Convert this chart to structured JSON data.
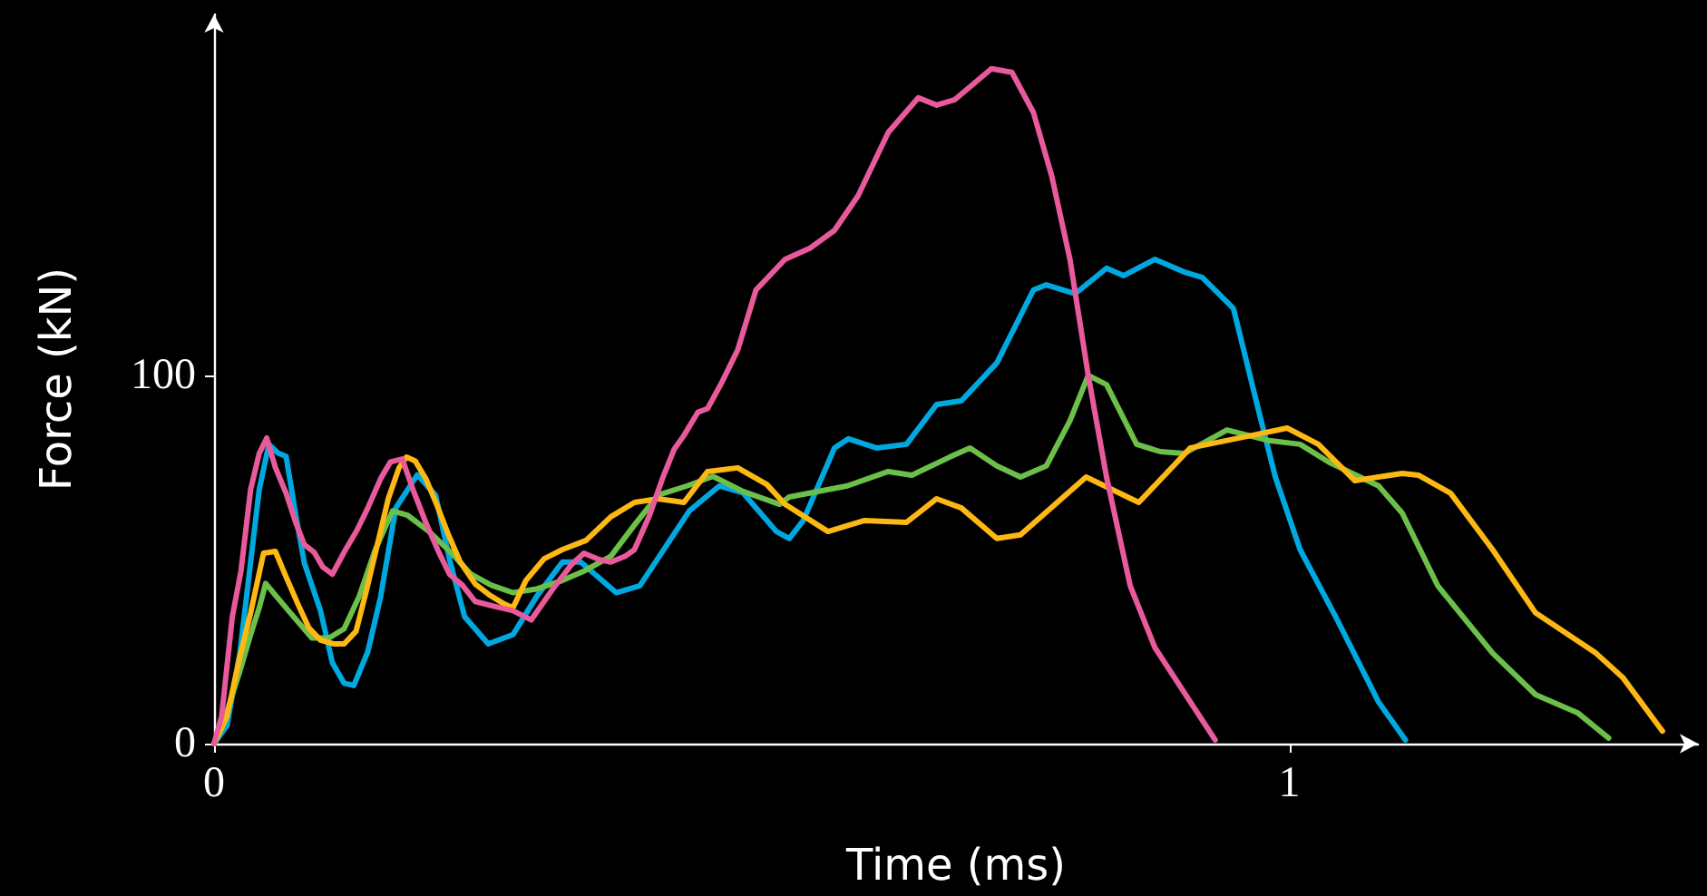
{
  "chart_data": {
    "type": "line",
    "xlabel": "Time (ms)",
    "ylabel": "Force (kN)",
    "xlim": [
      0,
      1.38
    ],
    "ylim": [
      0,
      198
    ],
    "xticks": [
      0,
      1
    ],
    "yticks": [
      0,
      100
    ],
    "grid": false,
    "marker": "none",
    "line_style": "solid",
    "series": [
      {
        "color": "#00a8e0",
        "x": [
          0,
          0.012,
          0.024,
          0.034,
          0.042,
          0.051,
          0.059,
          0.067,
          0.076,
          0.084,
          0.099,
          0.11,
          0.121,
          0.13,
          0.143,
          0.155,
          0.169,
          0.189,
          0.206,
          0.219,
          0.233,
          0.255,
          0.278,
          0.3,
          0.324,
          0.341,
          0.374,
          0.396,
          0.442,
          0.47,
          0.492,
          0.523,
          0.535,
          0.548,
          0.577,
          0.59,
          0.616,
          0.644,
          0.672,
          0.695,
          0.728,
          0.762,
          0.774,
          0.801,
          0.83,
          0.846,
          0.875,
          0.902,
          0.919,
          0.936,
          0.948,
          0.97,
          0.987,
          1.01,
          1.043,
          1.083,
          1.108
        ],
        "values": [
          0,
          4.9,
          24.6,
          49.3,
          69,
          81.3,
          79,
          78,
          62,
          49,
          36.1,
          22,
          16.4,
          15.8,
          25,
          40,
          64,
          73,
          67.5,
          50,
          34.5,
          27.1,
          29.6,
          40,
          49.3,
          49.3,
          41,
          42.9,
          63.2,
          70,
          68.1,
          57.6,
          55.7,
          60.6,
          80.3,
          82.8,
          80.3,
          81.3,
          92.1,
          93.1,
          103.4,
          123.2,
          124.6,
          122.2,
          129.1,
          127.1,
          131.5,
          128.1,
          126.6,
          121.7,
          118.2,
          92.1,
          72.4,
          52.7,
          34.5,
          11.3,
          1
        ]
      },
      {
        "color": "#6cc04a",
        "x": [
          0,
          0.007,
          0.024,
          0.034,
          0.042,
          0.048,
          0.058,
          0.071,
          0.091,
          0.107,
          0.121,
          0.135,
          0.15,
          0.166,
          0.18,
          0.2,
          0.22,
          0.239,
          0.258,
          0.278,
          0.3,
          0.324,
          0.345,
          0.369,
          0.39,
          0.413,
          0.44,
          0.464,
          0.492,
          0.526,
          0.535,
          0.589,
          0.627,
          0.649,
          0.684,
          0.703,
          0.728,
          0.75,
          0.774,
          0.796,
          0.813,
          0.83,
          0.858,
          0.88,
          0.902,
          0.942,
          0.981,
          1.01,
          1.037,
          1.083,
          1.105,
          1.138,
          1.189,
          1.229,
          1.268,
          1.297
        ],
        "values": [
          0,
          4,
          19.7,
          29.6,
          36.9,
          43.5,
          40,
          35.5,
          28.7,
          28.7,
          31.2,
          40,
          52.7,
          63.2,
          62,
          57.6,
          52,
          46,
          43,
          41,
          42,
          44.3,
          47,
          50.9,
          59,
          67.5,
          70,
          72.6,
          68.5,
          65,
          67,
          70,
          73.9,
          72.9,
          77.8,
          80.3,
          75.4,
          72.4,
          75.4,
          87.7,
          100,
          97.5,
          81.3,
          79.3,
          78.8,
          85.2,
          82.3,
          81.3,
          76.4,
          70,
          62.6,
          42.9,
          24.6,
          13.3,
          8.4,
          1.5
        ]
      },
      {
        "color": "#fdb813",
        "x": [
          0,
          0.012,
          0.024,
          0.034,
          0.046,
          0.057,
          0.067,
          0.078,
          0.088,
          0.099,
          0.111,
          0.121,
          0.132,
          0.142,
          0.152,
          0.162,
          0.172,
          0.179,
          0.187,
          0.197,
          0.207,
          0.218,
          0.229,
          0.243,
          0.256,
          0.27,
          0.278,
          0.29,
          0.307,
          0.324,
          0.346,
          0.369,
          0.391,
          0.413,
          0.437,
          0.459,
          0.487,
          0.514,
          0.531,
          0.571,
          0.605,
          0.644,
          0.672,
          0.695,
          0.728,
          0.75,
          0.811,
          0.86,
          0.908,
          0.965,
          0.998,
          1.027,
          1.061,
          1.105,
          1.12,
          1.15,
          1.189,
          1.229,
          1.285,
          1.31,
          1.347
        ],
        "values": [
          0,
          7.4,
          23.6,
          35.5,
          51.7,
          52.2,
          45.3,
          37.9,
          31.5,
          28.1,
          27.1,
          27.1,
          30.5,
          41.9,
          54.2,
          66.5,
          74.9,
          77.8,
          76.8,
          71.9,
          65,
          56.7,
          49.3,
          43.3,
          40.4,
          37.9,
          36.9,
          44.3,
          50.2,
          52.7,
          55.2,
          61.6,
          65.5,
          66.5,
          65.5,
          73.9,
          74.9,
          70.4,
          65,
          57.6,
          60.6,
          60.1,
          66.5,
          64,
          55.7,
          56.7,
          72.4,
          65.5,
          80.3,
          83.7,
          85.7,
          81.3,
          71.4,
          73.4,
          72.9,
          68,
          52.7,
          35.5,
          24.6,
          18,
          3.4
        ]
      },
      {
        "color": "#e85a9c",
        "x": [
          0,
          0.007,
          0.017,
          0.025,
          0.034,
          0.042,
          0.049,
          0.057,
          0.067,
          0.076,
          0.084,
          0.093,
          0.101,
          0.11,
          0.121,
          0.133,
          0.143,
          0.155,
          0.164,
          0.175,
          0.185,
          0.197,
          0.209,
          0.219,
          0.231,
          0.243,
          0.259,
          0.278,
          0.295,
          0.315,
          0.332,
          0.344,
          0.358,
          0.369,
          0.383,
          0.391,
          0.405,
          0.417,
          0.428,
          0.437,
          0.45,
          0.459,
          0.472,
          0.487,
          0.504,
          0.531,
          0.554,
          0.577,
          0.599,
          0.627,
          0.655,
          0.672,
          0.689,
          0.723,
          0.742,
          0.762,
          0.779,
          0.796,
          0.813,
          0.83,
          0.852,
          0.875,
          0.908,
          0.931
        ],
        "values": [
          0,
          7.4,
          34.5,
          46.8,
          69,
          78.8,
          83,
          75,
          68,
          60,
          54,
          52,
          48,
          46,
          52,
          58,
          64,
          72,
          76.5,
          77.3,
          69,
          60,
          52,
          46,
          43,
          38.6,
          37.4,
          36.1,
          33.6,
          42,
          48.5,
          51.7,
          50,
          49.3,
          51,
          52.7,
          62,
          72,
          80,
          83.7,
          90,
          91,
          98,
          106.9,
          123.2,
          131.5,
          134.5,
          139.4,
          148.8,
          166,
          175.4,
          173.4,
          174.9,
          183.3,
          182.3,
          171.4,
          154.2,
          131.5,
          100,
          72.4,
          42.9,
          26.1,
          11.3,
          1
        ]
      }
    ]
  }
}
